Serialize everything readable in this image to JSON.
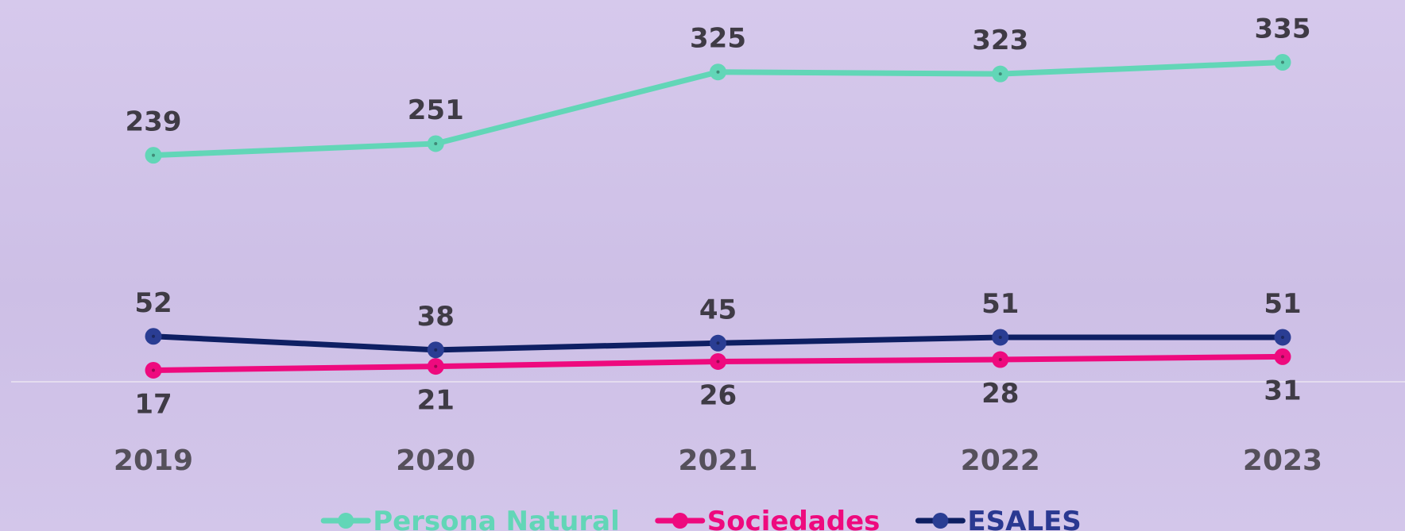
{
  "chart_data": {
    "type": "line",
    "categories": [
      "2019",
      "2020",
      "2021",
      "2022",
      "2023"
    ],
    "series": [
      {
        "name": "Persona Natural",
        "values": [
          239,
          251,
          325,
          323,
          335
        ],
        "color": "#62d6b7",
        "label_position": "above"
      },
      {
        "name": "Sociedades",
        "values": [
          17,
          21,
          26,
          28,
          31
        ],
        "color": "#ee0a7e",
        "label_position": "below"
      },
      {
        "name": "ESALES",
        "values": [
          52,
          38,
          45,
          51,
          51
        ],
        "color": "#0e1f63",
        "marker_color": "#2a3d93",
        "legend_text_color": "#2a3991",
        "label_position": "above"
      }
    ],
    "axis_line_color": "#e4dcef",
    "grid": false,
    "legend": "bottom-center"
  }
}
